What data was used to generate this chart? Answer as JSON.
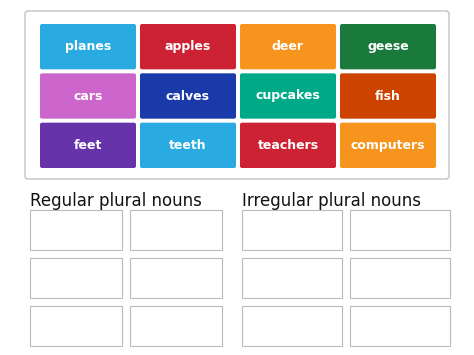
{
  "background_color": "#ffffff",
  "card_grid": [
    [
      {
        "text": "planes",
        "color": "#29abe2"
      },
      {
        "text": "apples",
        "color": "#cc2233"
      },
      {
        "text": "deer",
        "color": "#f7941d"
      },
      {
        "text": "geese",
        "color": "#1a7a3c"
      }
    ],
    [
      {
        "text": "cars",
        "color": "#cc66cc"
      },
      {
        "text": "calves",
        "color": "#1a3aaa"
      },
      {
        "text": "cupcakes",
        "color": "#00aa88"
      },
      {
        "text": "fish",
        "color": "#cc4400"
      }
    ],
    [
      {
        "text": "feet",
        "color": "#6633aa"
      },
      {
        "text": "teeth",
        "color": "#29abe2"
      },
      {
        "text": "teachers",
        "color": "#cc2233"
      },
      {
        "text": "computers",
        "color": "#f7941d"
      }
    ]
  ],
  "section_labels": [
    "Regular plural nouns",
    "Irregular plural nouns"
  ],
  "card_text_color": "#ffffff",
  "card_text_fontsize": 9,
  "card_fontweight": "bold",
  "top_box_edgecolor": "#cccccc",
  "empty_box_edgecolor": "#bbbbbb",
  "empty_box_facecolor": "#ffffff",
  "label_fontsize": 12
}
